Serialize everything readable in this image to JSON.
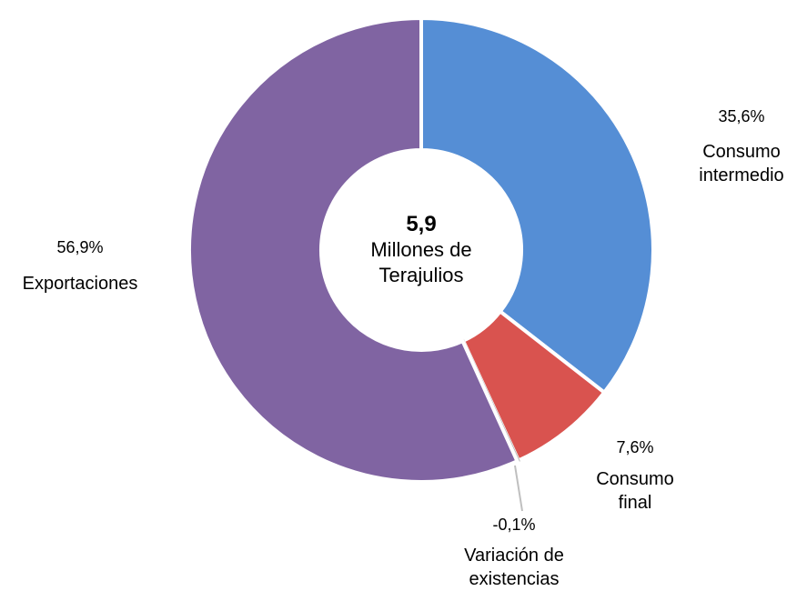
{
  "chart_data": {
    "type": "donut",
    "center_value": "5,9",
    "center_label": "Millones de Terajulios",
    "categories": [
      "Consumo intermedio",
      "Consumo final",
      "Variación de existencias",
      "Exportaciones"
    ],
    "values": [
      35.6,
      7.6,
      -0.1,
      56.9
    ],
    "value_labels": [
      "35,6%",
      "7,6%",
      "-0,1%",
      "56,9%"
    ],
    "colors": [
      "#558ed5",
      "#d9534f",
      "#bfbfbf",
      "#8064a2"
    ]
  }
}
